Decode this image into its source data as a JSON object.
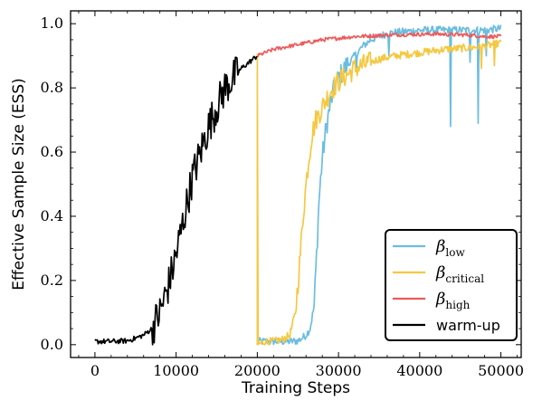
{
  "chart_data": {
    "type": "line",
    "title": "",
    "xlabel": "Training Steps",
    "ylabel": "Effective Sample Size (ESS)",
    "xlim": [
      -3000,
      52500
    ],
    "ylim": [
      -0.04,
      1.04
    ],
    "x_ticks": [
      0,
      10000,
      20000,
      30000,
      40000,
      50000
    ],
    "x_tick_labels": [
      "0",
      "10000",
      "20000",
      "30000",
      "40000",
      "50000"
    ],
    "y_ticks": [
      0.0,
      0.2,
      0.4,
      0.6,
      0.8,
      1.0
    ],
    "y_tick_labels": [
      "0.0",
      "0.2",
      "0.4",
      "0.6",
      "0.8",
      "1.0"
    ],
    "grid": false,
    "legend_position": "bottom-right",
    "series": [
      {
        "name": "β_low",
        "name_base": "β",
        "name_sub": "low",
        "color": "#6bbde0",
        "points": [
          [
            20000,
            0.01
          ],
          [
            21000,
            0.01
          ],
          [
            22000,
            0.01
          ],
          [
            23000,
            0.01
          ],
          [
            24000,
            0.01
          ],
          [
            25000,
            0.012
          ],
          [
            25500,
            0.02
          ],
          [
            26000,
            0.03
          ],
          [
            26500,
            0.05
          ],
          [
            27000,
            0.12
          ],
          [
            27300,
            0.28
          ],
          [
            27600,
            0.45
          ],
          [
            28000,
            0.58
          ],
          [
            28500,
            0.68
          ],
          [
            29000,
            0.75
          ],
          [
            29500,
            0.8
          ],
          [
            30000,
            0.83
          ],
          [
            31000,
            0.87
          ],
          [
            32000,
            0.9
          ],
          [
            33000,
            0.93
          ],
          [
            34000,
            0.95
          ],
          [
            35000,
            0.96
          ],
          [
            36000,
            0.97
          ],
          [
            38000,
            0.975
          ],
          [
            40000,
            0.98
          ],
          [
            42000,
            0.98
          ],
          [
            44000,
            0.98
          ],
          [
            46000,
            0.98
          ],
          [
            48000,
            0.98
          ],
          [
            50000,
            0.985
          ]
        ],
        "spikes": [
          [
            32200,
            0.85
          ],
          [
            36200,
            0.9
          ],
          [
            43800,
            0.68
          ],
          [
            46200,
            0.88
          ],
          [
            47200,
            0.69
          ],
          [
            48200,
            0.9
          ]
        ]
      },
      {
        "name": "β_critical",
        "name_base": "β",
        "name_sub": "critical",
        "color": "#f5c842",
        "points": [
          [
            20000,
            0.9
          ],
          [
            20000,
            0.0
          ],
          [
            21000,
            0.01
          ],
          [
            22000,
            0.01
          ],
          [
            23000,
            0.015
          ],
          [
            24000,
            0.03
          ],
          [
            24700,
            0.1
          ],
          [
            25200,
            0.25
          ],
          [
            25700,
            0.42
          ],
          [
            26200,
            0.55
          ],
          [
            26700,
            0.65
          ],
          [
            27200,
            0.7
          ],
          [
            28000,
            0.74
          ],
          [
            29000,
            0.79
          ],
          [
            30000,
            0.82
          ],
          [
            31000,
            0.84
          ],
          [
            32000,
            0.86
          ],
          [
            33000,
            0.87
          ],
          [
            34000,
            0.88
          ],
          [
            35000,
            0.89
          ],
          [
            37000,
            0.9
          ],
          [
            40000,
            0.91
          ],
          [
            43000,
            0.92
          ],
          [
            46000,
            0.925
          ],
          [
            48000,
            0.93
          ],
          [
            50000,
            0.94
          ]
        ],
        "spikes": [
          [
            47600,
            0.86
          ],
          [
            49200,
            0.87
          ]
        ]
      },
      {
        "name": "β_high",
        "name_base": "β",
        "name_sub": "high",
        "color": "#ee5a5a",
        "points": [
          [
            20000,
            0.9
          ],
          [
            21000,
            0.91
          ],
          [
            22000,
            0.92
          ],
          [
            24000,
            0.93
          ],
          [
            26000,
            0.94
          ],
          [
            28000,
            0.95
          ],
          [
            30000,
            0.955
          ],
          [
            32000,
            0.96
          ],
          [
            34000,
            0.962
          ],
          [
            36000,
            0.965
          ],
          [
            38000,
            0.966
          ],
          [
            40000,
            0.967
          ],
          [
            42000,
            0.968
          ],
          [
            44000,
            0.966
          ],
          [
            46000,
            0.965
          ],
          [
            48000,
            0.96
          ],
          [
            50000,
            0.96
          ]
        ],
        "spikes": []
      },
      {
        "name": "warm-up",
        "color": "#000000",
        "points": [
          [
            0,
            0.01
          ],
          [
            2000,
            0.01
          ],
          [
            4000,
            0.012
          ],
          [
            5000,
            0.02
          ],
          [
            6000,
            0.03
          ],
          [
            7000,
            0.05
          ],
          [
            8000,
            0.1
          ],
          [
            9000,
            0.18
          ],
          [
            10000,
            0.28
          ],
          [
            11000,
            0.4
          ],
          [
            12000,
            0.52
          ],
          [
            13000,
            0.6
          ],
          [
            14000,
            0.68
          ],
          [
            15000,
            0.74
          ],
          [
            16000,
            0.8
          ],
          [
            17000,
            0.83
          ],
          [
            18000,
            0.86
          ],
          [
            19000,
            0.88
          ],
          [
            20000,
            0.9
          ]
        ],
        "spikes": []
      }
    ]
  }
}
